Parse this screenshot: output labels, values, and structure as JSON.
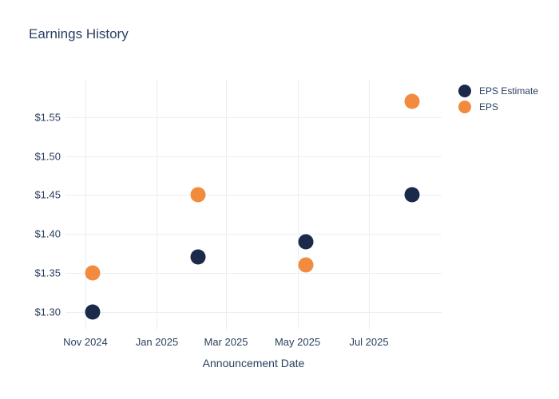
{
  "chart_data": {
    "type": "scatter",
    "title": "Earnings History",
    "xlabel": "Announcement Date",
    "ylabel": "",
    "x": [
      "2024-11-07",
      "2025-02-05",
      "2025-05-08",
      "2025-08-07"
    ],
    "series": [
      {
        "name": "EPS Estimate",
        "color": "#1b2a4a",
        "values": [
          1.3,
          1.37,
          1.39,
          1.45
        ]
      },
      {
        "name": "EPS",
        "color": "#f28b3d",
        "values": [
          1.35,
          1.45,
          1.36,
          1.57
        ]
      }
    ],
    "x_tick_labels": [
      "Nov 2024",
      "Jan 2025",
      "Mar 2025",
      "May 2025",
      "Jul 2025"
    ],
    "x_tick_dates": [
      "2024-11-01",
      "2025-01-01",
      "2025-03-01",
      "2025-05-01",
      "2025-07-01"
    ],
    "x_range": [
      "2024-10-15",
      "2025-09-01"
    ],
    "y_tick_labels": [
      "$1.30",
      "$1.35",
      "$1.40",
      "$1.45",
      "$1.50",
      "$1.55"
    ],
    "y_ticks": [
      1.3,
      1.35,
      1.4,
      1.45,
      1.5,
      1.55
    ],
    "ylim": [
      1.277,
      1.598
    ],
    "grid": true,
    "legend_position": "top-right",
    "colors": {
      "background": "#ffffff",
      "grid": "#e9eef6",
      "text": "#2a3f5f",
      "title": "#2a3f5f"
    }
  }
}
